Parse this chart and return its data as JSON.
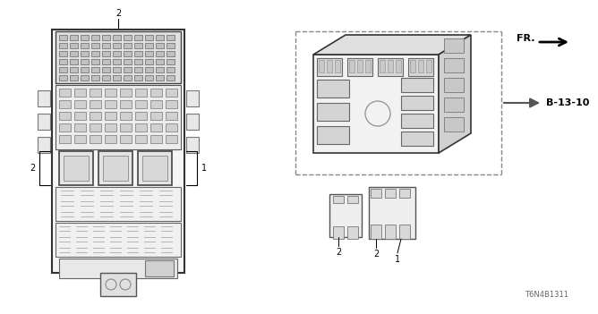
{
  "bg_color": "#ffffff",
  "part_number": "T6N4B1311",
  "fr_label": "FR.",
  "b_label": "B-13-10"
}
